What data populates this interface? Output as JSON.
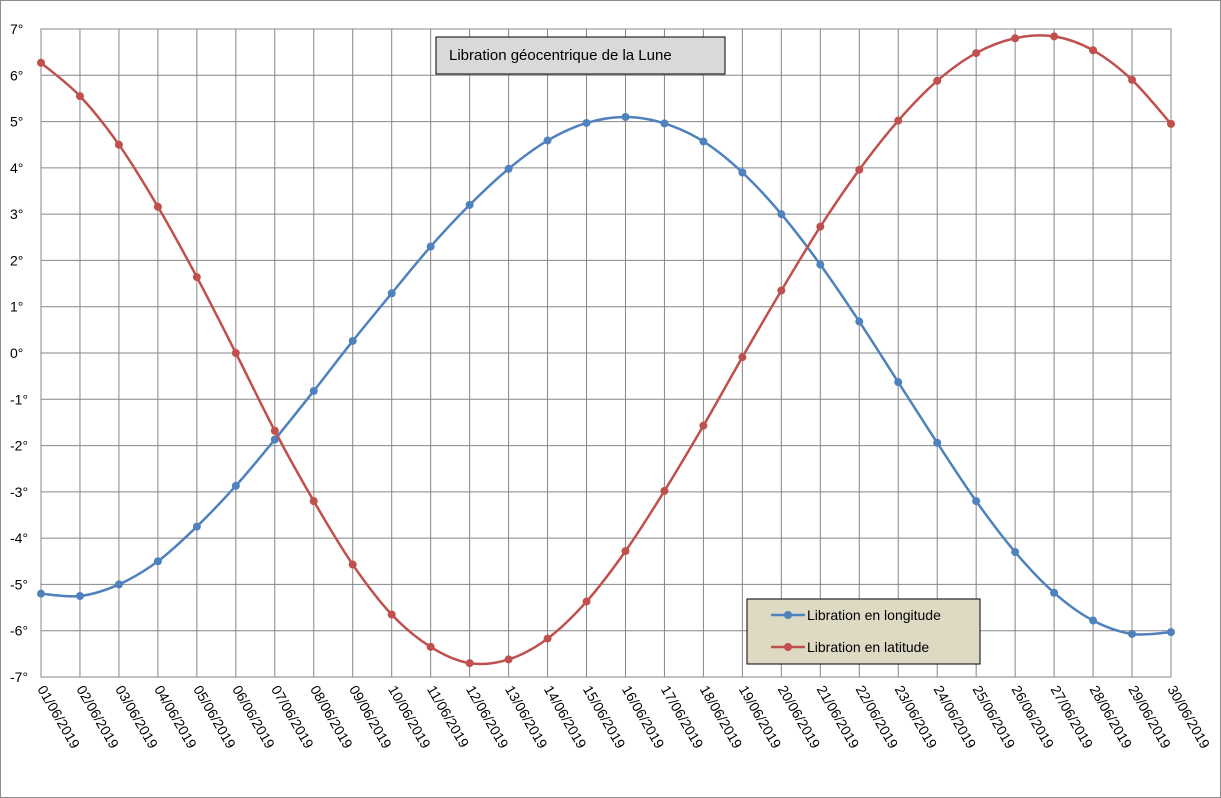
{
  "chart_data": {
    "type": "line",
    "title": "Libration géocentrique de la Lune",
    "categories": [
      "01/06/2019",
      "02/06/2019",
      "03/06/2019",
      "04/06/2019",
      "05/06/2019",
      "06/06/2019",
      "07/06/2019",
      "08/06/2019",
      "09/06/2019",
      "10/06/2019",
      "11/06/2019",
      "12/06/2019",
      "13/06/2019",
      "14/06/2019",
      "15/06/2019",
      "16/06/2019",
      "17/06/2019",
      "18/06/2019",
      "19/06/2019",
      "20/06/2019",
      "21/06/2019",
      "22/06/2019",
      "23/06/2019",
      "24/06/2019",
      "25/06/2019",
      "26/06/2019",
      "27/06/2019",
      "28/06/2019",
      "29/06/2019",
      "30/06/2019"
    ],
    "series": [
      {
        "name": "Libration en longitude",
        "color": "#4f81bd",
        "values": [
          -5.2,
          -5.25,
          -5.0,
          -4.5,
          -3.75,
          -2.87,
          -1.87,
          -0.82,
          0.26,
          1.29,
          2.3,
          3.2,
          3.98,
          4.59,
          4.97,
          5.1,
          4.96,
          4.57,
          3.9,
          3.0,
          1.91,
          0.68,
          -0.63,
          -1.94,
          -3.2,
          -4.3,
          -5.18,
          -5.78,
          -6.07,
          -6.03
        ]
      },
      {
        "name": "Libration en latitude",
        "color": "#c0504d",
        "values": [
          6.27,
          5.55,
          4.5,
          3.16,
          1.64,
          0.0,
          -1.68,
          -3.2,
          -4.57,
          -5.65,
          -6.35,
          -6.7,
          -6.62,
          -6.17,
          -5.37,
          -4.28,
          -2.98,
          -1.57,
          -0.09,
          1.35,
          2.73,
          3.96,
          5.02,
          5.88,
          6.48,
          6.8,
          6.84,
          6.54,
          5.9,
          4.95
        ]
      }
    ],
    "y_ticks": [
      "-7°",
      "-6°",
      "-5°",
      "-4°",
      "-3°",
      "-2°",
      "-1°",
      "0°",
      "1°",
      "2°",
      "3°",
      "4°",
      "5°",
      "6°",
      "7°"
    ],
    "ylim": [
      -7,
      7
    ],
    "grid": true,
    "legend_position": "bottom-right",
    "colors": {
      "grid": "#868686",
      "title_box_fill": "#d9d9d9",
      "legend_box_fill": "#ddd9c3"
    }
  }
}
